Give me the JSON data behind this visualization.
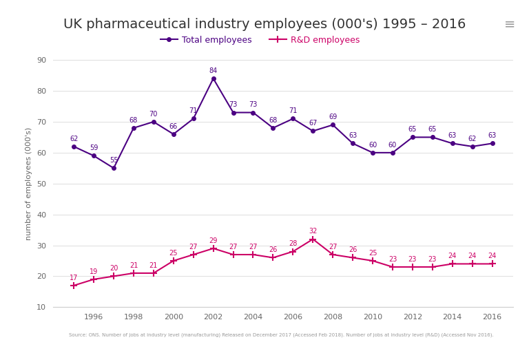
{
  "title": "UK pharmaceutical industry employees (000's) 1995 – 2016",
  "ylabel": "number of employees (000's)",
  "source_text": "Source: ONS. Number of jobs at industry level (manufacturing) Released on December 2017 (Accessed Feb 2018). Number of jobs at industry level (R&D) (Accessed Nov 2016).",
  "years": [
    1995,
    1996,
    1997,
    1998,
    1999,
    2000,
    2001,
    2002,
    2003,
    2004,
    2005,
    2006,
    2007,
    2008,
    2009,
    2010,
    2011,
    2012,
    2013,
    2014,
    2015,
    2016
  ],
  "total_employees": [
    62,
    59,
    55,
    68,
    70,
    66,
    71,
    84,
    73,
    73,
    68,
    71,
    67,
    69,
    63,
    60,
    60,
    65,
    65,
    63,
    62,
    63
  ],
  "rd_employees": [
    17,
    19,
    20,
    21,
    21,
    25,
    27,
    29,
    27,
    27,
    26,
    28,
    32,
    27,
    26,
    25,
    23,
    23,
    23,
    24,
    24,
    24
  ],
  "total_color": "#4b0082",
  "rd_color": "#cc0066",
  "background_color": "#ffffff",
  "ylim": [
    10,
    90
  ],
  "yticks": [
    10,
    20,
    30,
    40,
    50,
    60,
    70,
    80,
    90
  ],
  "xticks": [
    1996,
    1998,
    2000,
    2002,
    2004,
    2006,
    2008,
    2010,
    2012,
    2014,
    2016
  ],
  "legend_total": "Total employees",
  "legend_rd": "R&D employees",
  "title_fontsize": 14,
  "label_fontsize": 8,
  "tick_fontsize": 8,
  "annotation_fontsize": 7
}
